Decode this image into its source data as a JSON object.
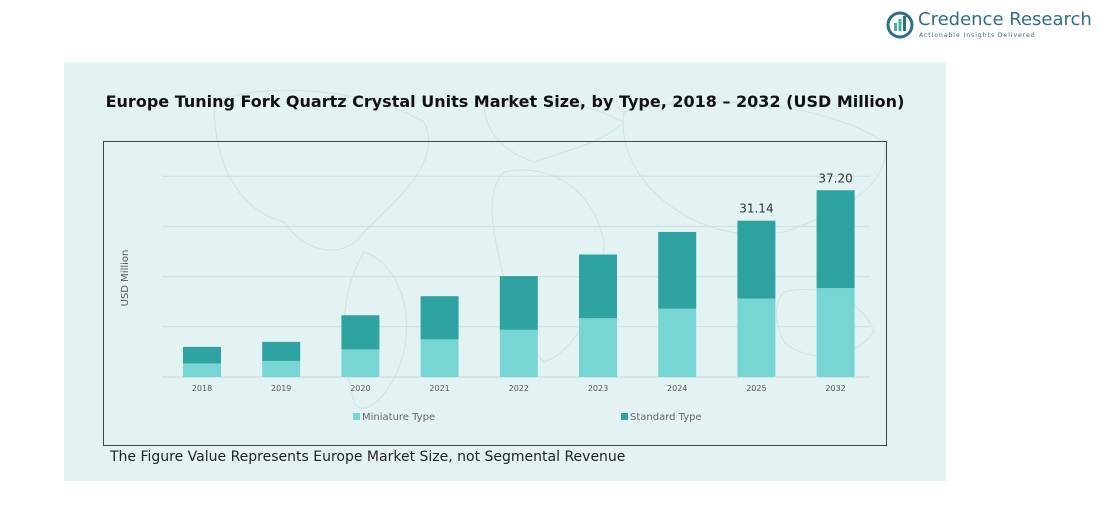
{
  "brand": {
    "name": "Credence Research",
    "tagline": "Actionable Insights Delivered"
  },
  "footnote": "The Figure Value Represents Europe Market Size, not Segmental Revenue",
  "colors": {
    "miniature": "#77d6d4",
    "standard": "#2fa3a1",
    "panel": "#e3f3f4",
    "grid": "#cfdfe0"
  },
  "chart_data": {
    "type": "bar",
    "stacked": true,
    "title": "Europe Tuning Fork Quartz Crystal Units Market Size, by Type, 2018 – 2032 (USD Million)",
    "xlabel": "",
    "ylabel": "USD Million",
    "categories": [
      "2018",
      "2019",
      "2020",
      "2021",
      "2022",
      "2023",
      "2024",
      "2025",
      "2032"
    ],
    "series": [
      {
        "name": "Miniature Type",
        "values": [
          2.7,
          3.2,
          5.5,
          7.5,
          9.4,
          11.7,
          13.6,
          15.6,
          17.7
        ]
      },
      {
        "name": "Standard Type",
        "values": [
          3.3,
          3.8,
          6.8,
          8.6,
          10.7,
          12.7,
          15.3,
          15.54,
          19.5
        ]
      }
    ],
    "data_labels": {
      "7": "31.14",
      "8": "37.20"
    },
    "ylim": [
      0,
      50
    ],
    "grid": true,
    "legend_position": "bottom"
  }
}
